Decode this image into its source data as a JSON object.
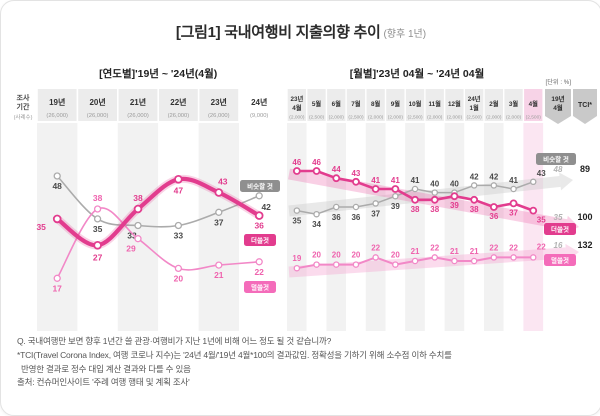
{
  "title": {
    "main": "[그림1] 국내여행비 지출의향 추이",
    "sub": "(향후 1년)"
  },
  "colors": {
    "more_pink": "#e23c8e",
    "less_pink": "#f288c7",
    "less_pink_label": "#ef63ae",
    "similar_gray": "#ababab",
    "similar_label": "#4a4a4a",
    "badge_gray": "#8f8f8f",
    "ribbon_gray": "#c9c9c9",
    "stripe_gray": "#f2f2f2",
    "header_cell": "#ececec",
    "pink_col": "#fbe6f2",
    "pink_col_header": "#f7d3e7"
  },
  "left_panel": {
    "header": "[연도별]'19년 ~ '24년(4월)",
    "row_label": {
      "line1": "조사",
      "line2": "기간",
      "sub": "(사례수)"
    }
  },
  "right_panel": {
    "header": "[월별]'23년 04월 ~ '24년 04월",
    "unit": "[단위 : %]",
    "ref_col_label": "19년 4월",
    "tci_col_label": "TCI*"
  },
  "chart_data": [
    {
      "type": "line",
      "title": "[연도별]'19년 ~ '24년(4월)",
      "categories": [
        "19년",
        "20년",
        "21년",
        "22년",
        "23년",
        "24년"
      ],
      "sample_sizes": [
        "(26,000)",
        "(26,000)",
        "(26,000)",
        "(26,000)",
        "(26,000)",
        "(9,000)"
      ],
      "ylim": [
        14,
        52
      ],
      "grid": false,
      "legend_position": "right-inline",
      "series": [
        {
          "key": "similar",
          "name": "비슷할 것",
          "values": [
            48,
            35,
            33,
            33,
            37,
            42
          ]
        },
        {
          "key": "less",
          "name": "덜 쓸 것",
          "values": [
            17,
            38,
            29,
            20,
            21,
            22
          ]
        },
        {
          "key": "more",
          "name": "더 쓸 것",
          "values": [
            35,
            27,
            38,
            47,
            43,
            36
          ]
        }
      ],
      "legend": {
        "similar": "비슷할 것",
        "more": "더쓸것",
        "less": "덜쓸것"
      }
    },
    {
      "type": "line",
      "title": "[월별]'23년 04월 ~ '24년 04월",
      "unit": "[단위 : %]",
      "categories": [
        "23년 4월",
        "5월",
        "6월",
        "7월",
        "8월",
        "9월",
        "10월",
        "11월",
        "12월",
        "24년 1월",
        "2월",
        "3월",
        "4월"
      ],
      "sample_sizes": [
        "(2,000)",
        "(2,500)",
        "(2,000)",
        "(2,500)",
        "(2,000)",
        "(2,000)",
        "(2,500)",
        "(2,000)",
        "(2,000)",
        "(2,500)",
        "(2,000)",
        "(2,000)",
        "(2,500)"
      ],
      "ylim": [
        14,
        50
      ],
      "grid": false,
      "legend_position": "right-inline",
      "series": [
        {
          "key": "similar",
          "name": "비슷할 것",
          "values": [
            35,
            34,
            36,
            36,
            37,
            39,
            41,
            40,
            40,
            42,
            42,
            41,
            43
          ]
        },
        {
          "key": "less",
          "name": "덜 쓸 것",
          "values": [
            19,
            20,
            20,
            20,
            22,
            20,
            21,
            22,
            21,
            21,
            22,
            22,
            22
          ]
        },
        {
          "key": "more",
          "name": "더 쓸 것",
          "values": [
            46,
            46,
            44,
            43,
            41,
            41,
            38,
            38,
            39,
            38,
            36,
            37,
            35
          ]
        }
      ],
      "legend": {
        "similar": "비슷할 것",
        "more": "더쓸것",
        "less": "덜쓸것"
      },
      "reference_column": {
        "label": "19년 4월",
        "values": {
          "similar": 48,
          "more": 35,
          "less": 16
        }
      },
      "tci_column": {
        "label": "TCI*",
        "values": {
          "similar": 89,
          "more": 100,
          "less": 132
        }
      },
      "trend_arrows": [
        "similar-up",
        "more-down",
        "less-up"
      ]
    }
  ],
  "footnotes": {
    "lines": [
      "Q. 국내여행만 보면 향후 1년간 쓸 관광·여행비가 지난 1년에 비해 어느 정도 될 것 같습니까?",
      "*TCI(Travel Corona Index, 여행 코로나 지수)는 '24년 4월/'19년 4월*100의 결과값임. 정확성을 기하기 위해 소수점 이하 수치를",
      "반영한 결과로 정수 대입 계산 결과와 다를 수 있음",
      "출처: 컨슈머인사이트 '주례 여행 행태 및 계획 조사'"
    ]
  }
}
